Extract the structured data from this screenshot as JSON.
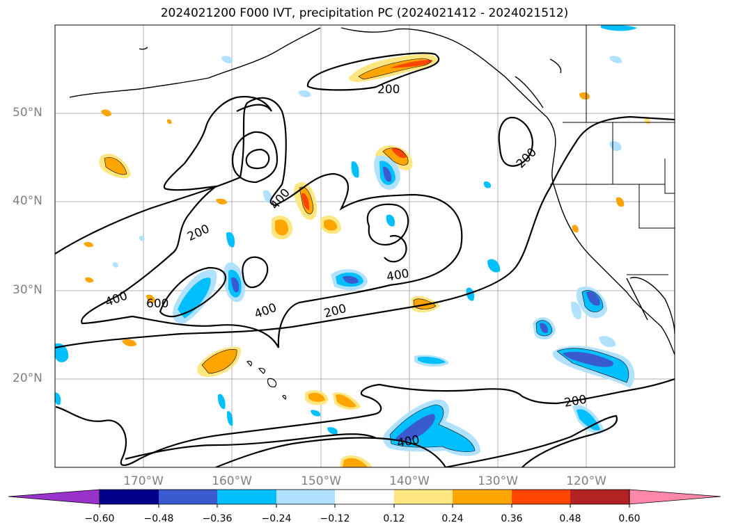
{
  "title": "2024021200 F000 IVT, precipitation PC (2024021412 - 2024021512)",
  "map": {
    "lat_range": [
      10,
      60
    ],
    "lon_range": [
      -180,
      -110
    ],
    "lat_labels": [
      "50°N",
      "40°N",
      "30°N",
      "20°N"
    ],
    "lon_labels": [
      "170°W",
      "160°W",
      "150°W",
      "140°W",
      "130°W",
      "120°W"
    ],
    "contour_labels": [
      "200",
      "400",
      "200",
      "400",
      "600",
      "400",
      "200",
      "400",
      "200",
      "400",
      "200"
    ],
    "grid": true
  },
  "colorbar": {
    "ticks": [
      "−0.60",
      "−0.48",
      "−0.36",
      "−0.24",
      "−0.12",
      "0.12",
      "0.24",
      "0.36",
      "0.48",
      "0.60"
    ],
    "colors": [
      "#9933cc",
      "#00008b",
      "#3a5bcf",
      "#00bfff",
      "#b0e2ff",
      "#ffffff",
      "#ffe680",
      "#ffa500",
      "#ff4500",
      "#b22222",
      "#ff88aa"
    ],
    "extend": "both"
  }
}
